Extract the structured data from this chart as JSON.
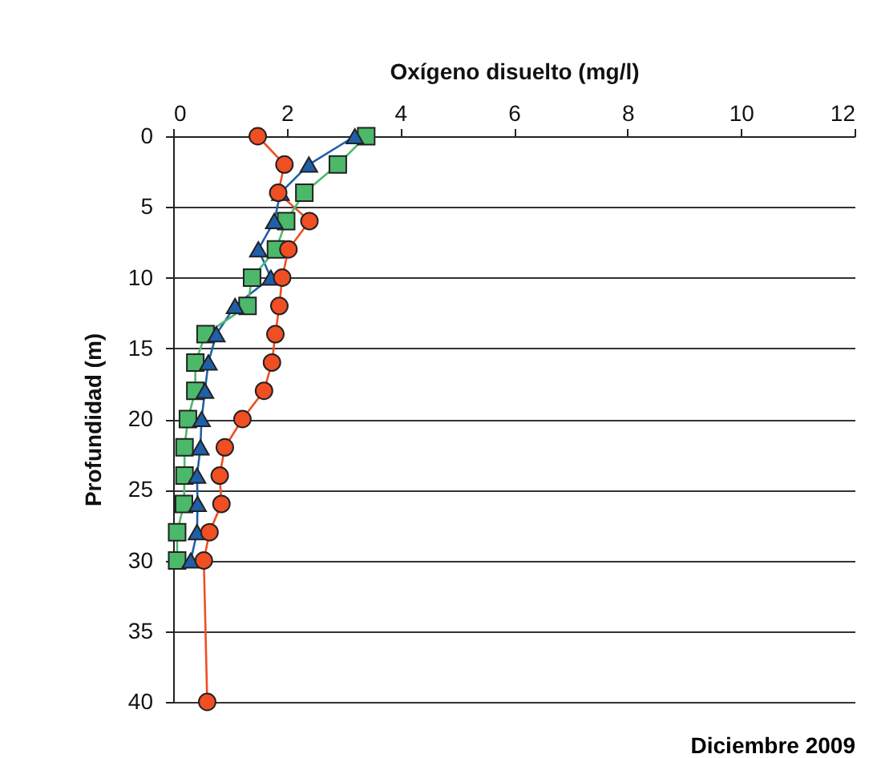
{
  "chart_data": {
    "type": "line",
    "xlabel": "Oxígeno disuelto (mg/l)",
    "ylabel": "Profundidad (m)",
    "annotations": [
      "Diciembre 2009"
    ],
    "xlim": [
      0,
      12
    ],
    "xticks": [
      0,
      2,
      4,
      6,
      8,
      10,
      12
    ],
    "ylim": [
      40,
      0
    ],
    "yticks": [
      0,
      5,
      10,
      15,
      20,
      25,
      30,
      35,
      40
    ],
    "grid": "y",
    "series": [
      {
        "color": "#f04e23",
        "marker": "circle",
        "x": [
          1.49,
          1.96,
          1.85,
          2.4,
          2.03,
          1.92,
          1.87,
          1.8,
          1.74,
          1.6,
          1.22,
          0.91,
          0.82,
          0.85,
          0.64,
          0.54,
          0.6
        ],
        "values": [
          0,
          2,
          4,
          6,
          8,
          10,
          12,
          14,
          16,
          18,
          20,
          22,
          24,
          26,
          28,
          30,
          40
        ]
      },
      {
        "color": "#1f5fa8",
        "marker": "triangle",
        "x": [
          3.2,
          2.39,
          1.89,
          1.78,
          1.5,
          1.72,
          1.09,
          0.76,
          0.62,
          0.56,
          0.5,
          0.48,
          0.42,
          0.43,
          0.42,
          0.31
        ],
        "values": [
          0,
          2,
          4,
          6,
          8,
          10,
          12,
          14,
          16,
          18,
          20,
          22,
          24,
          26,
          28,
          30
        ]
      },
      {
        "color": "#4cb86a",
        "marker": "square",
        "x": [
          3.4,
          2.9,
          2.31,
          1.99,
          1.81,
          1.39,
          1.31,
          0.57,
          0.39,
          0.39,
          0.26,
          0.2,
          0.2,
          0.19,
          0.07,
          0.07
        ],
        "values": [
          0,
          2,
          4,
          6,
          8,
          10,
          12,
          14,
          16,
          18,
          20,
          22,
          24,
          26,
          28,
          30
        ]
      }
    ]
  }
}
